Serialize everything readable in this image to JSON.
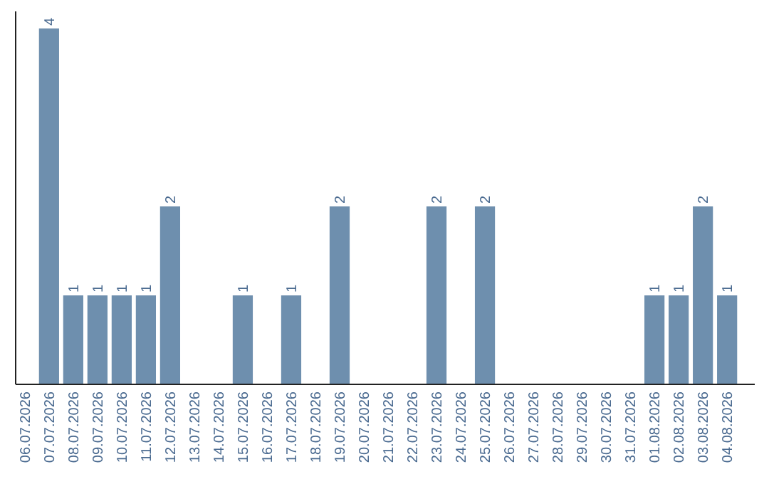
{
  "chart_data": {
    "type": "bar",
    "categories": [
      "06.07.2026",
      "07.07.2026",
      "08.07.2026",
      "09.07.2026",
      "10.07.2026",
      "11.07.2026",
      "12.07.2026",
      "13.07.2026",
      "14.07.2026",
      "15.07.2026",
      "16.07.2026",
      "17.07.2026",
      "18.07.2026",
      "19.07.2026",
      "20.07.2026",
      "21.07.2026",
      "22.07.2026",
      "23.07.2026",
      "24.07.2026",
      "25.07.2026",
      "26.07.2026",
      "27.07.2026",
      "28.07.2026",
      "29.07.2026",
      "30.07.2026",
      "31.07.2026",
      "01.08.2026",
      "02.08.2026",
      "03.08.2026",
      "04.08.2026"
    ],
    "values": [
      0,
      4,
      1,
      1,
      1,
      1,
      2,
      0,
      0,
      1,
      0,
      1,
      0,
      2,
      0,
      0,
      0,
      2,
      0,
      2,
      0,
      0,
      0,
      0,
      0,
      0,
      1,
      1,
      2,
      1
    ],
    "value_labels": [
      null,
      "4",
      "1",
      "1",
      "1",
      "1",
      "2",
      null,
      null,
      "1",
      null,
      "1",
      null,
      "2",
      null,
      null,
      null,
      "2",
      null,
      "2",
      null,
      null,
      null,
      null,
      null,
      null,
      "1",
      "1",
      "2",
      "1"
    ],
    "color": "#6e8fae",
    "tick_labels": "x"
  }
}
